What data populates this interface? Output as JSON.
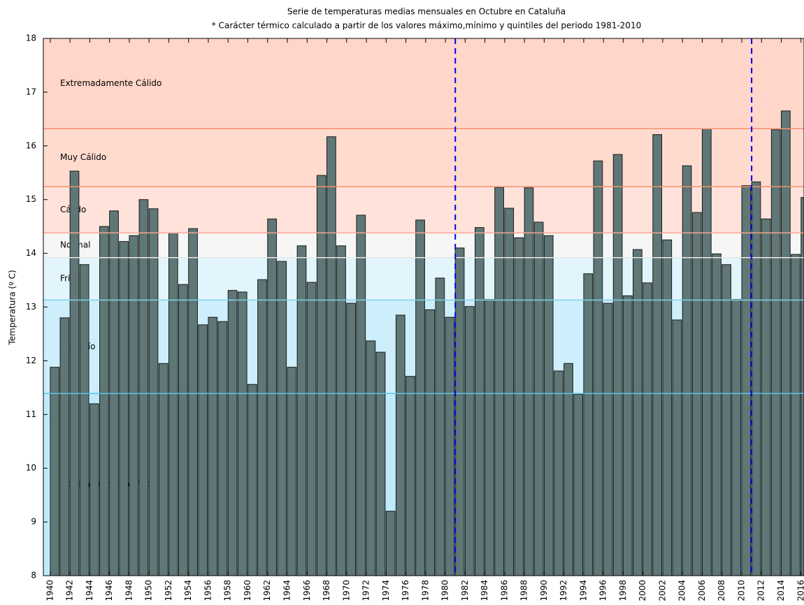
{
  "chart_data": {
    "type": "bar",
    "title": "Serie de temperaturas medias mensuales en Octubre en Cataluña",
    "subtitle": "* Carácter térmico calculado a partir de los valores máximo,mínimo y quintiles del periodo 1981-2010",
    "ylabel": "Temperatura (º C)",
    "x": [
      1940,
      1941,
      1942,
      1943,
      1944,
      1945,
      1946,
      1947,
      1948,
      1949,
      1950,
      1951,
      1952,
      1953,
      1954,
      1955,
      1956,
      1957,
      1958,
      1959,
      1960,
      1961,
      1962,
      1963,
      1964,
      1965,
      1966,
      1967,
      1968,
      1969,
      1970,
      1971,
      1972,
      1973,
      1974,
      1975,
      1976,
      1977,
      1978,
      1979,
      1980,
      1981,
      1982,
      1983,
      1984,
      1985,
      1986,
      1987,
      1988,
      1989,
      1990,
      1991,
      1992,
      1993,
      1994,
      1995,
      1996,
      1997,
      1998,
      1999,
      2000,
      2001,
      2002,
      2003,
      2004,
      2005,
      2006,
      2007,
      2008,
      2009,
      2010,
      2011,
      2012,
      2013,
      2014,
      2015,
      2016
    ],
    "values": [
      11.88,
      12.8,
      15.53,
      13.79,
      11.2,
      14.5,
      14.79,
      14.22,
      14.33,
      15.0,
      14.83,
      11.95,
      14.38,
      13.42,
      14.46,
      12.67,
      12.81,
      12.73,
      13.31,
      13.28,
      11.56,
      13.51,
      14.64,
      13.85,
      11.88,
      14.14,
      13.46,
      15.45,
      16.17,
      14.14,
      13.07,
      14.71,
      12.37,
      12.16,
      9.2,
      12.85,
      11.71,
      14.62,
      12.95,
      13.54,
      12.81,
      14.1,
      13.01,
      14.48,
      13.14,
      15.23,
      14.84,
      14.29,
      15.22,
      14.58,
      14.33,
      11.81,
      11.95,
      11.38,
      13.62,
      15.72,
      13.07,
      15.84,
      13.21,
      14.07,
      13.45,
      16.21,
      14.25,
      12.76,
      15.63,
      14.76,
      16.32,
      13.99,
      13.79,
      13.14,
      15.26,
      15.33,
      14.64,
      16.3,
      16.65,
      13.98,
      15.04
    ],
    "color": "#5f7776",
    "xlim": [
      1939.3,
      2016.3
    ],
    "xticks": [
      1940,
      1942,
      1944,
      1946,
      1948,
      1950,
      1952,
      1954,
      1956,
      1958,
      1960,
      1962,
      1964,
      1966,
      1968,
      1970,
      1972,
      1974,
      1976,
      1978,
      1980,
      1982,
      1984,
      1986,
      1988,
      1990,
      1992,
      1994,
      1996,
      1998,
      2000,
      2002,
      2004,
      2006,
      2008,
      2010,
      2012,
      2014,
      2016
    ],
    "ylim": [
      8,
      18
    ],
    "yticks": [
      8,
      9,
      10,
      11,
      12,
      13,
      14,
      15,
      16,
      17,
      18
    ],
    "thresholds": [
      11.39,
      13.13,
      13.92,
      14.38,
      15.24,
      16.32
    ],
    "threshold_colors": [
      "#5bc4e6",
      "#7fd3ee",
      "#e8e8e8",
      "#f7a88e",
      "#f5906f",
      "#f5906f"
    ],
    "bands": [
      {
        "name": "Extremadamente  Frío",
        "color": "#bfeafb"
      },
      {
        "name": "Muy Frío",
        "color": "#cdeffc"
      },
      {
        "name": "Frío",
        "color": "#e2f5fd"
      },
      {
        "name": "Normal",
        "color": "#f6f6f6"
      },
      {
        "name": "Cálido",
        "color": "#ffe3da"
      },
      {
        "name": "Muy Cálido",
        "color": "#ffdbcf"
      },
      {
        "name": "Extremadamente Cálido",
        "color": "#ffd6c9"
      }
    ],
    "reference_lines": [
      1981,
      2011
    ],
    "reference_color": "#0000ee"
  }
}
